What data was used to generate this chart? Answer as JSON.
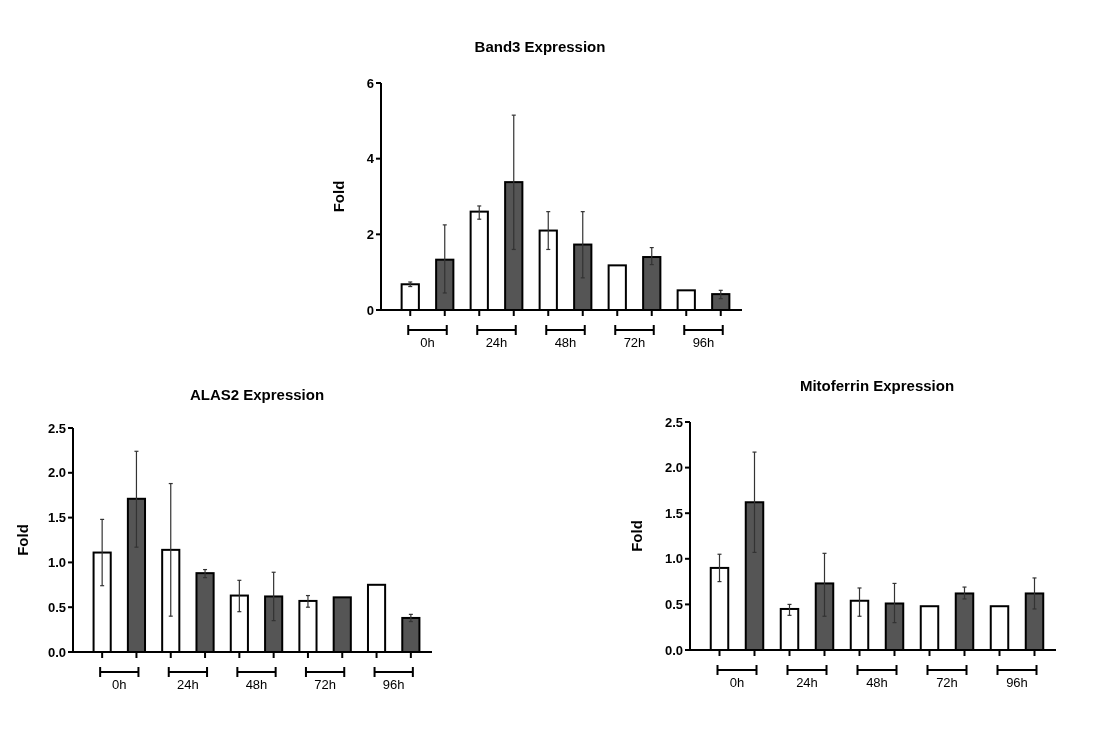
{
  "chart_data": [
    {
      "type": "bar",
      "title": "Band3 Expression",
      "ylabel": "Fold",
      "categories": [
        "0h",
        "24h",
        "48h",
        "72h",
        "96h"
      ],
      "ylim": [
        0,
        6
      ],
      "yticks": [
        0,
        2,
        4,
        6
      ],
      "series": [
        {
          "color": "#ffffff",
          "values": [
            0.68,
            2.6,
            2.1,
            1.18,
            0.52
          ],
          "errors": [
            [
              0.62,
              0.74
            ],
            [
              2.4,
              2.75
            ],
            [
              1.6,
              2.6
            ],
            null,
            null
          ]
        },
        {
          "color": "#555555",
          "values": [
            1.33,
            3.38,
            1.73,
            1.4,
            0.42
          ],
          "errors": [
            [
              0.45,
              2.25
            ],
            [
              1.6,
              5.15
            ],
            [
              0.85,
              2.6
            ],
            [
              1.2,
              1.65
            ],
            [
              0.3,
              0.52
            ]
          ]
        }
      ]
    },
    {
      "type": "bar",
      "title": "ALAS2 Expression",
      "ylabel": "Fold",
      "categories": [
        "0h",
        "24h",
        "48h",
        "72h",
        "96h"
      ],
      "ylim": [
        0,
        2.5
      ],
      "yticks": [
        {
          "value": 0,
          "label": "0.0"
        },
        {
          "value": 0.5,
          "label": "0.5"
        },
        {
          "value": 1,
          "label": "1.0"
        },
        {
          "value": 1.5,
          "label": "1.5"
        },
        {
          "value": 2,
          "label": "2.0"
        },
        {
          "value": 2.5,
          "label": "2.5"
        }
      ],
      "series": [
        {
          "color": "#ffffff",
          "values": [
            1.11,
            1.14,
            0.63,
            0.57,
            0.75
          ],
          "errors": [
            [
              0.74,
              1.48
            ],
            [
              0.4,
              1.88
            ],
            [
              0.45,
              0.8
            ],
            [
              0.5,
              0.63
            ],
            null
          ]
        },
        {
          "color": "#555555",
          "values": [
            1.71,
            0.88,
            0.62,
            0.61,
            0.38
          ],
          "errors": [
            [
              1.17,
              2.24
            ],
            [
              0.83,
              0.92
            ],
            [
              0.35,
              0.89
            ],
            null,
            [
              0.34,
              0.42
            ]
          ]
        }
      ]
    },
    {
      "type": "bar",
      "title": "Mitoferrin Expression",
      "ylabel": "Fold",
      "categories": [
        "0h",
        "24h",
        "48h",
        "72h",
        "96h"
      ],
      "ylim": [
        0,
        2.5
      ],
      "yticks": [
        {
          "value": 0,
          "label": "0.0"
        },
        {
          "value": 0.5,
          "label": "0.5"
        },
        {
          "value": 1,
          "label": "1.0"
        },
        {
          "value": 1.5,
          "label": "1.5"
        },
        {
          "value": 2,
          "label": "2.0"
        },
        {
          "value": 2.5,
          "label": "2.5"
        }
      ],
      "series": [
        {
          "color": "#ffffff",
          "values": [
            0.9,
            0.45,
            0.54,
            0.48,
            0.48
          ],
          "errors": [
            [
              0.75,
              1.05
            ],
            [
              0.38,
              0.5
            ],
            [
              0.37,
              0.68
            ],
            null,
            null
          ]
        },
        {
          "color": "#555555",
          "values": [
            1.62,
            0.73,
            0.51,
            0.62,
            0.62
          ],
          "errors": [
            [
              1.07,
              2.17
            ],
            [
              0.37,
              1.06
            ],
            [
              0.3,
              0.73
            ],
            [
              0.56,
              0.69
            ],
            [
              0.45,
              0.79
            ]
          ]
        }
      ]
    }
  ]
}
